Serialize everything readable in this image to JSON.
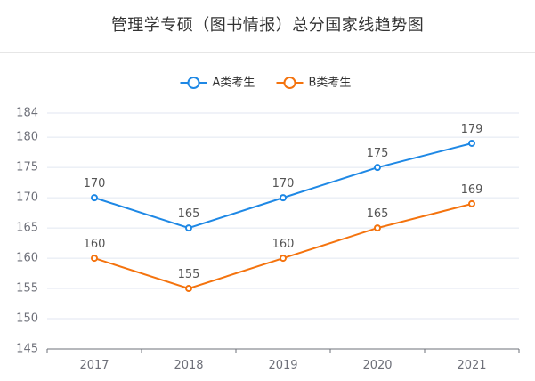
{
  "title": "管理学专硕（图书情报）总分国家线趋势图",
  "chart_data": {
    "type": "line",
    "title": "管理学专硕（图书情报）总分国家线趋势图",
    "categories": [
      "2017",
      "2018",
      "2019",
      "2020",
      "2021"
    ],
    "series": [
      {
        "name": "A类考生",
        "color": "#1e88e5",
        "values": [
          170,
          165,
          170,
          175,
          179
        ]
      },
      {
        "name": "B类考生",
        "color": "#f4730e",
        "values": [
          160,
          155,
          160,
          165,
          169
        ]
      }
    ],
    "yticks": [
      145,
      150,
      155,
      160,
      165,
      170,
      175,
      180,
      184
    ],
    "ylim": [
      145,
      184
    ],
    "xlabel": "",
    "ylabel": "",
    "grid": true,
    "legend": "top-center",
    "data_labels": true
  }
}
